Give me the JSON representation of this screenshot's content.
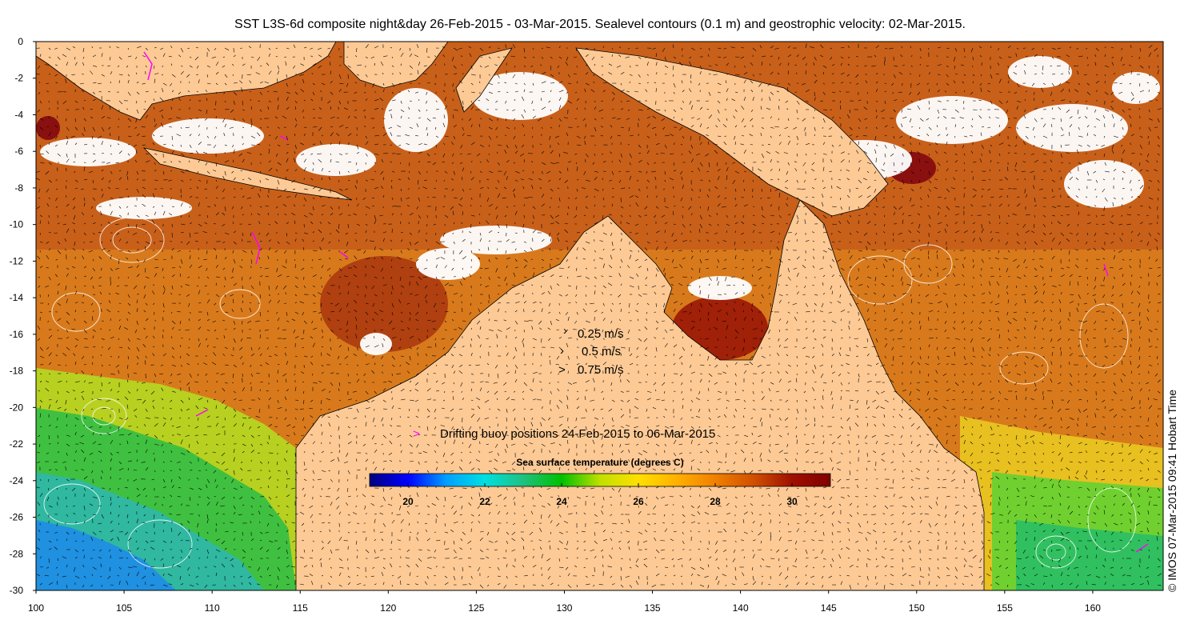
{
  "title": "SST L3S-6d composite night&day 26-Feb-2015 - 03-Mar-2015. Sealevel contours (0.1 m) and geostrophic velocity: 02-Mar-2015.",
  "axes": {
    "x_ticks": [
      "100",
      "105",
      "110",
      "115",
      "120",
      "125",
      "130",
      "135",
      "140",
      "145",
      "150",
      "155",
      "160"
    ],
    "y_ticks": [
      "0",
      "-2",
      "-4",
      "-6",
      "-8",
      "-10",
      "-12",
      "-14",
      "-16",
      "-18",
      "-20",
      "-22",
      "-24",
      "-26",
      "-28",
      "-30"
    ]
  },
  "velocity_legend": [
    {
      "label": "0.25 m/s",
      "speed": 0.25
    },
    {
      "label": "0.5 m/s",
      "speed": 0.5
    },
    {
      "label": "0.75 m/s",
      "speed": 0.75
    }
  ],
  "buoy_legend": {
    "symbol": ">",
    "label": "Drifting buoy positions 24-Feb-2015 to 06-Mar-2015",
    "color": "#ff00ff"
  },
  "colorbar": {
    "title": "Sea surface temperature (degrees C)",
    "range": [
      19,
      31
    ],
    "tick_labels": [
      "20",
      "22",
      "24",
      "26",
      "28",
      "30"
    ],
    "stops": [
      "#00007f",
      "#0000ff",
      "#00a0ff",
      "#00e0e0",
      "#20c080",
      "#00c000",
      "#c0e000",
      "#ffe000",
      "#ffb000",
      "#f08000",
      "#d05000",
      "#a01000",
      "#800000"
    ]
  },
  "credit": "© IMOS 07-Mar-2015 09:41 Hobart Time",
  "colors": {
    "land": "#fdca96",
    "sea_warm": "#d8701a",
    "sea_hot": "#b03a10",
    "sea_mid": "#e8a020",
    "sea_cool": "#30c050",
    "sea_cold": "#20a0e0",
    "cloud": "#ffffff"
  }
}
